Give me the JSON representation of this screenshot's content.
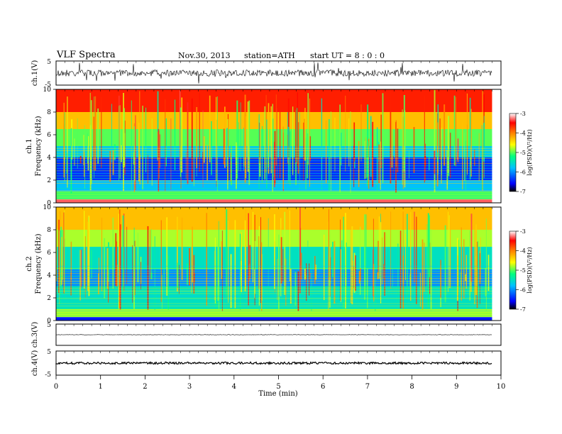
{
  "header": {
    "title": "VLF  Spectra",
    "date": "Nov.30, 2013",
    "station": "station=ATH",
    "start_ut": "start  UT =   8 : 0  : 0"
  },
  "chart_data": [
    {
      "type": "line",
      "panel": "ch1-waveform",
      "ylabel": "ch.1(V)",
      "ylim": [
        -5,
        5
      ],
      "y_ticks": [
        "5",
        "-5"
      ],
      "note": "noisy waveform, approx ±1.5 V with spikes"
    },
    {
      "type": "heatmap",
      "panel": "ch1-spectrogram",
      "ylabel_line1": "ch.1",
      "ylabel_line2": "Frequency  (kHz)",
      "ylim": [
        0,
        10
      ],
      "y_ticks": [
        "0",
        "2",
        "4",
        "6",
        "8",
        "10"
      ],
      "zlim": [
        -7,
        -3
      ],
      "colorbar_ticks": [
        "-3",
        "-4",
        "-5",
        "-6",
        "-7"
      ],
      "colorbar_label": "log(PSD)(V²/Hz)",
      "bands": [
        {
          "f_low": 8,
          "f_high": 10,
          "level": -3.6
        },
        {
          "f_low": 6.5,
          "f_high": 8,
          "level": -4.3
        },
        {
          "f_low": 5,
          "f_high": 6.5,
          "level": -5.0
        },
        {
          "f_low": 4,
          "f_high": 5,
          "level": -5.7
        },
        {
          "f_low": 2,
          "f_high": 4,
          "level": -6.4
        },
        {
          "f_low": 1,
          "f_high": 2,
          "level": -5.8
        },
        {
          "f_low": 0.3,
          "f_high": 1,
          "level": -5.0
        },
        {
          "f_low": 0,
          "f_high": 0.3,
          "level": -3.3
        }
      ]
    },
    {
      "type": "heatmap",
      "panel": "ch2-spectrogram",
      "ylabel_line1": "ch.2",
      "ylabel_line2": "Frequency  (kHz)",
      "ylim": [
        0,
        10
      ],
      "y_ticks": [
        "0",
        "2",
        "4",
        "6",
        "8",
        "10"
      ],
      "zlim": [
        -7,
        -3
      ],
      "colorbar_ticks": [
        "-3",
        "-4",
        "-5",
        "-6",
        "-7"
      ],
      "colorbar_label": "log(PSD)(V²/Hz)",
      "bands": [
        {
          "f_low": 8,
          "f_high": 10,
          "level": -4.3
        },
        {
          "f_low": 6.5,
          "f_high": 8,
          "level": -4.8
        },
        {
          "f_low": 4.5,
          "f_high": 6.5,
          "level": -5.5
        },
        {
          "f_low": 3,
          "f_high": 4.5,
          "level": -6.0
        },
        {
          "f_low": 1,
          "f_high": 3,
          "level": -5.5
        },
        {
          "f_low": 0.3,
          "f_high": 1,
          "level": -4.8
        },
        {
          "f_low": 0,
          "f_high": 0.3,
          "level": -6.5
        }
      ]
    },
    {
      "type": "line",
      "panel": "ch3-waveform",
      "ylabel": "ch.3(V)",
      "ylim": [
        -5,
        5
      ],
      "y_ticks": [
        "5"
      ],
      "note": "nearly flat trace"
    },
    {
      "type": "line",
      "panel": "ch4-waveform",
      "ylabel": "ch.4(V)",
      "ylim": [
        -5,
        5
      ],
      "y_ticks": [
        "5",
        "-5"
      ],
      "note": "thick flat trace"
    }
  ],
  "x_axis": {
    "xlabel": "Time  (min)",
    "xlim": [
      0,
      10
    ],
    "ticks": [
      "0",
      "1",
      "2",
      "3",
      "4",
      "5",
      "6",
      "7",
      "8",
      "9",
      "10"
    ],
    "data_end": 9.8
  },
  "colormap": [
    "#000000",
    "#0000ff",
    "#00c0ff",
    "#00ff80",
    "#ffff00",
    "#ff8000",
    "#ff0000",
    "#ffffff"
  ]
}
